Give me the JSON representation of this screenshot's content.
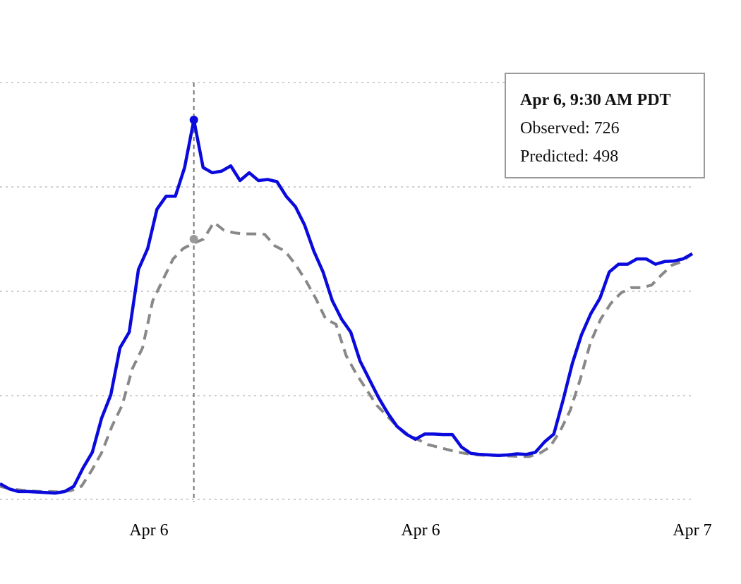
{
  "chart_data": {
    "type": "line",
    "title": "",
    "xlabel": "",
    "ylabel": "",
    "x_tick_labels": [
      "Apr 6",
      "Apr 6",
      "Apr 7"
    ],
    "y_tick_labels": [],
    "grid": "horizontal dotted",
    "series": [
      {
        "name": "Observed",
        "color": "#0a0adc",
        "style": "solid",
        "values": [
          30,
          20,
          15,
          15,
          14,
          13,
          12,
          15,
          25,
          60,
          90,
          155,
          200,
          290,
          320,
          440,
          480,
          555,
          580,
          580,
          635,
          726,
          635,
          625,
          628,
          638,
          610,
          625,
          610,
          612,
          608,
          580,
          560,
          525,
          475,
          435,
          380,
          345,
          320,
          265,
          230,
          195,
          165,
          140,
          125,
          115,
          125,
          125,
          124,
          124,
          100,
          88,
          86,
          85,
          84,
          85,
          87,
          86,
          90,
          110,
          125,
          190,
          260,
          315,
          355,
          385,
          435,
          450,
          450,
          460,
          460,
          450,
          455,
          456,
          460,
          470
        ]
      },
      {
        "name": "Predicted",
        "color": "#888888",
        "style": "dashed",
        "values": [
          25,
          20,
          18,
          16,
          15,
          15,
          14,
          17,
          25,
          55,
          90,
          140,
          180,
          250,
          290,
          380,
          420,
          460,
          480,
          490,
          498,
          530,
          515,
          510,
          508,
          508,
          507,
          485,
          475,
          450,
          420,
          385,
          345,
          335,
          275,
          240,
          210,
          180,
          160,
          140,
          125,
          115,
          105,
          100,
          95,
          90,
          87,
          85,
          84,
          84,
          83,
          82,
          82,
          88,
          100,
          130,
          170,
          230,
          300,
          345,
          375,
          395,
          405,
          405,
          410,
          430,
          448,
          455,
          470
        ]
      }
    ],
    "highlight": {
      "label": "Apr 6, 9:30 AM PDT",
      "observed_label": "Observed: 726",
      "predicted_label": "Predicted: 498",
      "observed": 726,
      "predicted": 498
    }
  }
}
